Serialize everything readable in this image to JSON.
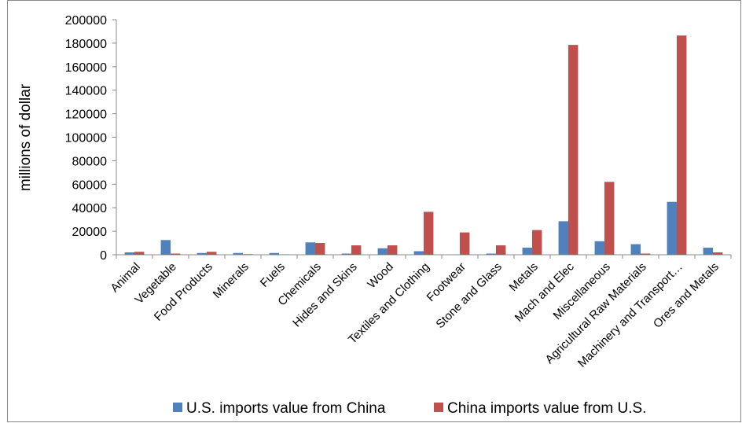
{
  "chart_data": {
    "type": "bar",
    "ylabel": "millions of dollar",
    "categories": [
      "Animal",
      "Vegetable",
      "Food Products",
      "Minerals",
      "Fuels",
      "Chemicals",
      "Hides and Skins",
      "Wood",
      "Textiles and Clothing",
      "Footwear",
      "Stone and Glass",
      "Metals",
      "Mach and Elec",
      "Miscellaneous",
      "Agricultural Raw Materials",
      "Machinery and Transport…",
      "Ores and Metals"
    ],
    "series": [
      {
        "name": "U.S. imports value from China",
        "color": "#4f81bd",
        "values": [
          2000,
          12500,
          1500,
          1500,
          1500,
          10500,
          1000,
          5500,
          3000,
          0,
          1000,
          6000,
          28500,
          11500,
          9000,
          45000,
          6000
        ]
      },
      {
        "name": "China imports value from U.S.",
        "color": "#c0504d",
        "values": [
          2500,
          1000,
          2500,
          500,
          300,
          10000,
          8000,
          8000,
          36500,
          19000,
          8000,
          21000,
          178500,
          62000,
          1000,
          186500,
          2000
        ]
      }
    ],
    "ylim": [
      0,
      200000
    ],
    "yticks": [
      0,
      20000,
      40000,
      60000,
      80000,
      100000,
      120000,
      140000,
      160000,
      180000,
      200000
    ],
    "grid": false
  }
}
